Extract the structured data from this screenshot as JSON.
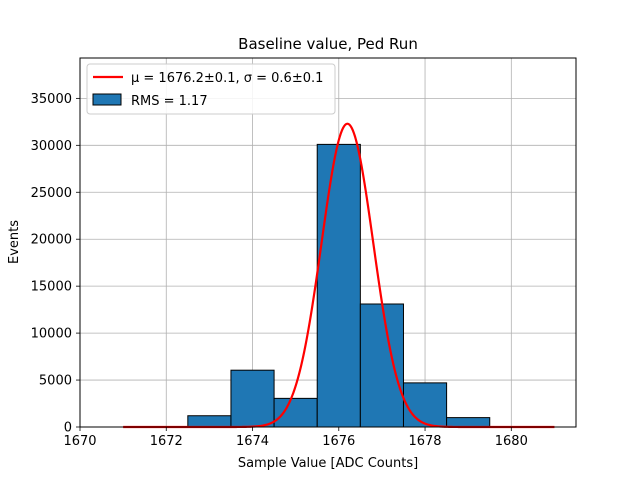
{
  "chart_data": {
    "type": "bar",
    "title": "Baseline value, Ped Run",
    "xlabel": "Sample Value [ADC Counts]",
    "ylabel": "Events",
    "xlim": [
      1670,
      1681.5
    ],
    "ylim": [
      0,
      39300
    ],
    "x_ticks": [
      1670,
      1672,
      1674,
      1676,
      1678,
      1680
    ],
    "y_ticks": [
      0,
      5000,
      10000,
      15000,
      20000,
      25000,
      30000,
      35000
    ],
    "grid": true,
    "legend_position": "top-left",
    "histogram": {
      "name": "RMS = 1.17",
      "color": "#1f77b4",
      "bins": [
        {
          "x0": 1670.5,
          "x1": 1671.5,
          "value": 0
        },
        {
          "x0": 1671.5,
          "x1": 1672.5,
          "value": 0
        },
        {
          "x0": 1672.5,
          "x1": 1673.5,
          "value": 1200
        },
        {
          "x0": 1673.5,
          "x1": 1674.5,
          "value": 6050
        },
        {
          "x0": 1674.5,
          "x1": 1675.5,
          "value": 3050
        },
        {
          "x0": 1675.5,
          "x1": 1676.5,
          "value": 30100
        },
        {
          "x0": 1676.5,
          "x1": 1677.5,
          "value": 13100
        },
        {
          "x0": 1677.5,
          "x1": 1678.5,
          "value": 4700
        },
        {
          "x0": 1678.5,
          "x1": 1679.5,
          "value": 1000
        },
        {
          "x0": 1679.5,
          "x1": 1680.5,
          "value": 0
        },
        {
          "x0": 1680.5,
          "x1": 1681.0,
          "value": 0
        }
      ]
    },
    "fit": {
      "name": "μ = 1676.2±0.1, σ = 0.6±0.1",
      "color": "#ff0000",
      "function": "gaussian",
      "mu": 1676.2,
      "sigma": 0.6,
      "amplitude": 32300,
      "x_range": [
        1671,
        1681
      ]
    }
  }
}
